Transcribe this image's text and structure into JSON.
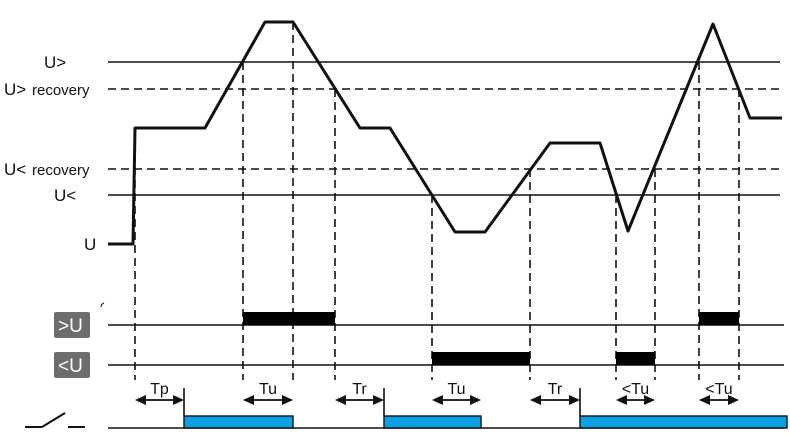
{
  "levels": {
    "u_over": "U>",
    "u_over_recovery_sym": "U>",
    "u_over_recovery_word": "recovery",
    "u_under_recovery_sym": "U<",
    "u_under_recovery_word": "recovery",
    "u_under": "U<",
    "u": "U"
  },
  "rows": {
    "over_voltage": ">U",
    "under_voltage": "<U"
  },
  "timings": [
    "Tp",
    "Tu",
    "Tr",
    "Tu",
    "Tr",
    "<Tu",
    "<Tu"
  ],
  "colors": {
    "line": "#111111",
    "relay_on": "#0aa0e3",
    "tag_bg": "#6d6d6d"
  },
  "icons": {
    "relay": "switch-contact-icon"
  }
}
